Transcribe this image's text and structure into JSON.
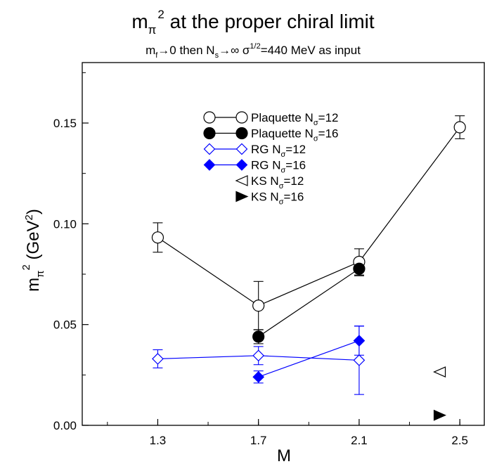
{
  "chart_data": {
    "type": "scatter",
    "title": {
      "main": "m",
      "sub": "π",
      "sup": "2",
      "rest": " at the proper chiral limit"
    },
    "subtitle": {
      "part1": "m",
      "part1_sub": "f",
      "part2": "→0 then N",
      "part2_sub": "s",
      "part3": "→∞   σ",
      "part3_sup": "1/2",
      "part4": "=440 MeV as input"
    },
    "xlabel": "M",
    "ylabel": {
      "m": "m",
      "m_sub": "π",
      "m_sup": "2",
      "open": " (GeV",
      "unit_sup": "2",
      "close": ")"
    },
    "xlim": [
      1.0,
      2.6
    ],
    "ylim": [
      0.0,
      0.18
    ],
    "xticks": [
      "1.3",
      "1.7",
      "2.1",
      "2.5"
    ],
    "yticks": [
      "0.00",
      "0.05",
      "0.10",
      "0.15"
    ],
    "legend_position": "top-center",
    "series": [
      {
        "name": "Plaquette  N",
        "name_sub": "σ",
        "name_rest": "=12",
        "marker": "circle-open",
        "color": "#000000",
        "line": true,
        "x": [
          1.3,
          1.7,
          2.1,
          2.5
        ],
        "y": [
          0.0932,
          0.0594,
          0.0811,
          0.1479
        ],
        "err": [
          0.0073,
          0.012,
          0.0065,
          0.0057
        ]
      },
      {
        "name": "Plaquette  N",
        "name_sub": "σ",
        "name_rest": "=16",
        "marker": "circle-filled",
        "color": "#000000",
        "line": true,
        "x": [
          1.7,
          2.1
        ],
        "y": [
          0.044,
          0.0777
        ],
        "err": [
          0.0035,
          0.0035
        ]
      },
      {
        "name": "RG  N",
        "name_sub": "σ",
        "name_rest": "=12",
        "marker": "diamond-open",
        "color": "#0000ff",
        "line": true,
        "x": [
          1.3,
          1.7,
          2.1
        ],
        "y": [
          0.033,
          0.0346,
          0.0323
        ],
        "err": [
          0.0045,
          0.0045,
          0.017
        ]
      },
      {
        "name": "RG  N",
        "name_sub": "σ",
        "name_rest": "=16",
        "marker": "diamond-filled",
        "color": "#0000ff",
        "line": true,
        "x": [
          1.7,
          2.1
        ],
        "y": [
          0.024,
          0.042
        ],
        "err": [
          0.003,
          0.0072
        ]
      },
      {
        "name": "KS  N",
        "name_sub": "σ",
        "name_rest": "=12",
        "marker": "triangle-left-open",
        "color": "#000000",
        "line": false,
        "x": [
          2.42
        ],
        "y": [
          0.0265
        ],
        "err": [
          0
        ]
      },
      {
        "name": "KS  N",
        "name_sub": "σ",
        "name_rest": "=16",
        "marker": "triangle-right-filled",
        "color": "#000000",
        "line": false,
        "x": [
          2.42
        ],
        "y": [
          0.005
        ],
        "err": [
          0
        ]
      }
    ]
  }
}
